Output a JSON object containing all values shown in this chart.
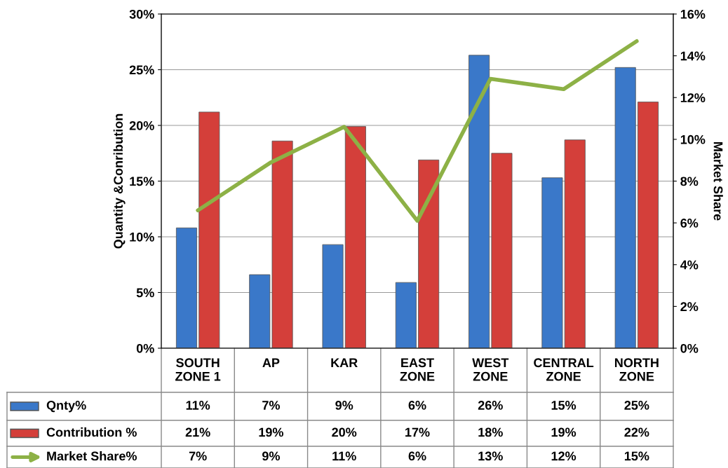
{
  "chart_data": {
    "type": "bar",
    "categories": [
      "SOUTH ZONE 1",
      "AP",
      "KAR",
      "EAST ZONE",
      "WEST ZONE",
      "CENTRAL ZONE",
      "NORTH ZONE"
    ],
    "ylabel": "Quantity &Conribution",
    "y2label": "Market Share",
    "ylim": [
      0,
      30
    ],
    "yticks": [
      {
        "value": 0,
        "label": "0%"
      },
      {
        "value": 5,
        "label": "5%"
      },
      {
        "value": 10,
        "label": "10%"
      },
      {
        "value": 15,
        "label": "15%"
      },
      {
        "value": 20,
        "label": "20%"
      },
      {
        "value": 25,
        "label": "25%"
      },
      {
        "value": 30,
        "label": "30%"
      }
    ],
    "y2lim": [
      0,
      16
    ],
    "y2ticks": [
      {
        "value": 0,
        "label": "0%"
      },
      {
        "value": 2,
        "label": "2%"
      },
      {
        "value": 4,
        "label": "4%"
      },
      {
        "value": 6,
        "label": "6%"
      },
      {
        "value": 8,
        "label": "8%"
      },
      {
        "value": 10,
        "label": "10%"
      },
      {
        "value": 12,
        "label": "12%"
      },
      {
        "value": 14,
        "label": "14%"
      },
      {
        "value": 16,
        "label": "16%"
      }
    ],
    "grid": "y",
    "legend": "bottom",
    "series": [
      {
        "name": "Qnty%",
        "color": "#3a78c9",
        "values": [
          10.8,
          6.6,
          9.3,
          5.9,
          26.3,
          15.3,
          25.2
        ],
        "value_labels": [
          "11%",
          "7%",
          "9%",
          "6%",
          "26%",
          "15%",
          "25%"
        ]
      },
      {
        "name": "Contribution %",
        "color": "#d43f3a",
        "values": [
          21.2,
          18.6,
          19.9,
          16.9,
          17.5,
          18.7,
          22.1
        ],
        "value_labels": [
          "21%",
          "19%",
          "20%",
          "17%",
          "18%",
          "19%",
          "22%"
        ]
      },
      {
        "name": "Market Share%",
        "type": "line",
        "axis": "y2",
        "color": "#8db146",
        "values": [
          6.6,
          8.9,
          10.6,
          6.1,
          12.9,
          12.4,
          14.7
        ],
        "value_labels": [
          "7%",
          "9%",
          "11%",
          "6%",
          "13%",
          "12%",
          "15%"
        ]
      }
    ]
  }
}
